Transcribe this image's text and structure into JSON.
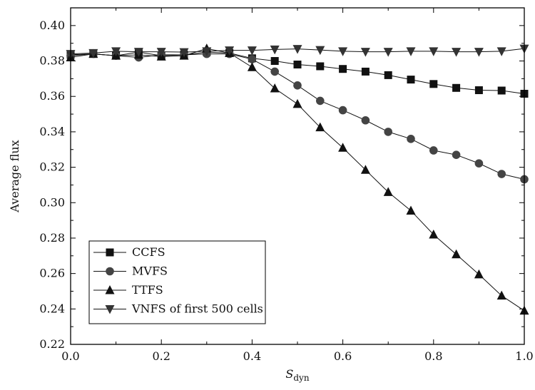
{
  "chart_data": {
    "type": "line",
    "xlabel_main": "S",
    "xlabel_sub": "dyn",
    "ylabel": "Average flux",
    "xlim": [
      0.0,
      1.0
    ],
    "ylim": [
      0.22,
      0.41
    ],
    "x_ticks": [
      "0.0",
      "0.2",
      "0.4",
      "0.6",
      "0.8",
      "1.0"
    ],
    "y_ticks": [
      "0.22",
      "0.24",
      "0.26",
      "0.28",
      "0.30",
      "0.32",
      "0.34",
      "0.36",
      "0.38",
      "0.40"
    ],
    "grid": false,
    "legend_position": "bottom-left",
    "x": [
      0.0,
      0.05,
      0.1,
      0.15,
      0.2,
      0.25,
      0.3,
      0.35,
      0.4,
      0.45,
      0.5,
      0.55,
      0.6,
      0.65,
      0.7,
      0.75,
      0.8,
      0.85,
      0.9,
      0.95,
      1.0
    ],
    "series": [
      {
        "name": "CCFS",
        "marker": "square",
        "values": [
          0.3835,
          0.384,
          0.383,
          0.385,
          0.383,
          0.3835,
          0.385,
          0.3845,
          0.3815,
          0.38,
          0.378,
          0.377,
          0.3755,
          0.374,
          0.372,
          0.3695,
          0.367,
          0.3648,
          0.3635,
          0.3633,
          0.3615
        ]
      },
      {
        "name": "MVFS",
        "marker": "circle",
        "values": [
          0.383,
          0.384,
          0.383,
          0.382,
          0.3835,
          0.3835,
          0.384,
          0.384,
          0.381,
          0.374,
          0.3662,
          0.3575,
          0.3522,
          0.3465,
          0.34,
          0.336,
          0.3295,
          0.327,
          0.3222,
          0.3162,
          0.3132
        ]
      },
      {
        "name": "TTFS",
        "marker": "triangle-up",
        "values": [
          0.382,
          0.384,
          0.383,
          0.3835,
          0.3825,
          0.383,
          0.387,
          0.3845,
          0.3765,
          0.3645,
          0.3557,
          0.3425,
          0.331,
          0.3185,
          0.306,
          0.2955,
          0.282,
          0.2708,
          0.2595,
          0.2475,
          0.239
        ]
      },
      {
        "name": "VNFS of first 500 cells",
        "marker": "triangle-down",
        "values": [
          0.384,
          0.3845,
          0.3855,
          0.3852,
          0.3852,
          0.385,
          0.3855,
          0.386,
          0.386,
          0.3865,
          0.3868,
          0.3862,
          0.3855,
          0.3852,
          0.3852,
          0.3855,
          0.3855,
          0.3852,
          0.3852,
          0.3855,
          0.387
        ]
      }
    ]
  }
}
